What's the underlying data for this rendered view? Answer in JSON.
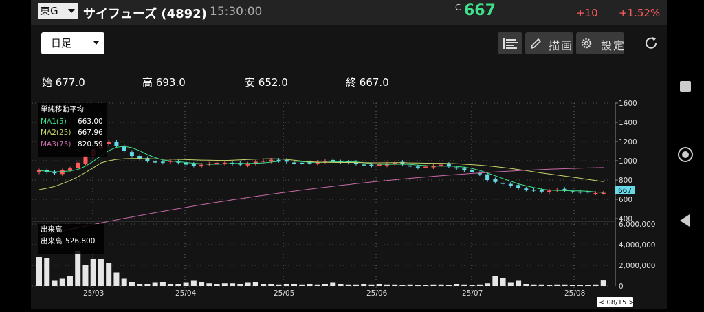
{
  "header": {
    "market_label": "東G",
    "title": "サイフューズ (4892)",
    "time": "15:30:00",
    "close_mark": "C",
    "price": "667",
    "change": "+10",
    "change_pct": "+1.52%"
  },
  "toolbar": {
    "period_label": "日足",
    "draw_label": "描画",
    "settings_label": "設定"
  },
  "ohlc": {
    "open_label": "始",
    "open": "677.0",
    "high_label": "高",
    "high": "693.0",
    "low_label": "安",
    "low": "652.0",
    "close_label": "終",
    "close": "667.0"
  },
  "price_legend": {
    "title": "単純移動平均",
    "ma1_label": "MA1(5)",
    "ma1_value": "663.00",
    "ma2_label": "MA2(25)",
    "ma2_value": "667.96",
    "ma3_label": "MA3(75)",
    "ma3_value": "820.59"
  },
  "volume_legend": {
    "title": "出来高",
    "volume_label": "出来高",
    "volume_value": "526,800"
  },
  "price_axis": [
    "1600",
    "1400",
    "1200",
    "1000",
    "800",
    "600",
    "400"
  ],
  "volume_axis": [
    "6,000,000",
    "4,000,000",
    "2,000,000",
    "0"
  ],
  "price_tag": "667",
  "x_labels": [
    "25/03",
    "25/04",
    "25/05",
    "25/06",
    "25/07",
    "25/08"
  ],
  "date_tag": "< 08/15 >",
  "colors": {
    "up": "#ff5a5a",
    "down": "#67d8e6",
    "ma1": "#3fe08a",
    "ma2": "#c8d36a",
    "ma3": "#c86aa8",
    "price": "#3fe08a",
    "change": "#ff5a5a"
  },
  "chart_data": [
    {
      "type": "candlestick",
      "ylim": [
        400,
        1600
      ],
      "x_ticks": [
        "25/03",
        "25/04",
        "25/05",
        "25/06",
        "25/07",
        "25/08"
      ],
      "approx_closes": [
        900,
        880,
        870,
        900,
        920,
        980,
        1050,
        1120,
        1180,
        1200,
        1150,
        1100,
        1050,
        1020,
        1000,
        990,
        980,
        1000,
        980,
        960,
        950,
        960,
        970,
        980,
        980,
        970,
        960,
        970,
        990,
        1000,
        1010,
        1000,
        990,
        980,
        975,
        980,
        990,
        1000,
        1000,
        990,
        980,
        970,
        960,
        950,
        960,
        970,
        980,
        960,
        940,
        930,
        940,
        950,
        960,
        940,
        920,
        900,
        880,
        860,
        800,
        780,
        760,
        740,
        720,
        700,
        690,
        680,
        690,
        700,
        690,
        680,
        675,
        670,
        665,
        667
      ],
      "ma1_last": 663.0,
      "ma2_last": 667.96,
      "ma3_last": 820.59,
      "last_close": 667
    },
    {
      "type": "bar",
      "name": "出来高",
      "ylim": [
        0,
        6000000
      ],
      "approx_values": [
        2800000,
        2700000,
        500000,
        700000,
        1000000,
        3400000,
        2000000,
        2600000,
        2600000,
        2200000,
        1300000,
        700000,
        400000,
        200000,
        200000,
        300000,
        400000,
        200000,
        200000,
        300000,
        500000,
        400000,
        250000,
        200000,
        250000,
        250000,
        200000,
        300000,
        400000,
        200000,
        200000,
        150000,
        200000,
        200000,
        150000,
        200000,
        150000,
        200000,
        300000,
        200000,
        150000,
        150000,
        200000,
        150000,
        200000,
        150000,
        150000,
        100000,
        150000,
        100000,
        100000,
        150000,
        150000,
        100000,
        200000,
        150000,
        100000,
        150000,
        250000,
        1000000,
        800000,
        300000,
        500000,
        200000,
        150000,
        150000,
        100000,
        150000,
        150000,
        100000,
        100000,
        100000,
        150000,
        526800
      ],
      "last_value": 526800
    }
  ]
}
